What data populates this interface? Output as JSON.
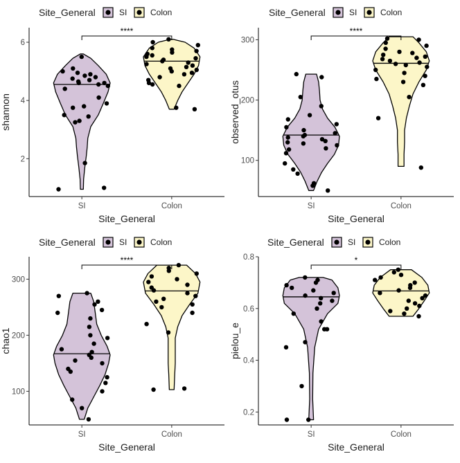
{
  "chart_data": [
    {
      "type": "violin",
      "legend_title": "Site_General",
      "legend_position": "top",
      "categories": [
        "SI",
        "Colon"
      ],
      "colors": {
        "SI": "#d4c3d9",
        "Colon": "#fcf6c8"
      },
      "xlabel": "Site_General",
      "ylabel": "shannon",
      "ylim": [
        0.7,
        6.5
      ],
      "yticks": [
        2,
        4,
        6
      ],
      "significance": "****",
      "median": {
        "SI": 4.55,
        "Colon": 5.35
      },
      "violin": {
        "SI": [
          [
            0.95,
            0.05
          ],
          [
            1.3,
            0.06
          ],
          [
            1.7,
            0.1
          ],
          [
            2.1,
            0.15
          ],
          [
            2.4,
            0.18
          ],
          [
            2.7,
            0.2
          ],
          [
            3.1,
            0.3
          ],
          [
            3.5,
            0.55
          ],
          [
            3.9,
            0.72
          ],
          [
            4.3,
            0.88
          ],
          [
            4.6,
            0.95
          ],
          [
            4.9,
            0.82
          ],
          [
            5.2,
            0.55
          ],
          [
            5.45,
            0.3
          ],
          [
            5.6,
            0.05
          ]
        ],
        "Colon": [
          [
            3.7,
            0.08
          ],
          [
            4.0,
            0.2
          ],
          [
            4.3,
            0.35
          ],
          [
            4.6,
            0.55
          ],
          [
            4.9,
            0.75
          ],
          [
            5.2,
            0.9
          ],
          [
            5.5,
            0.95
          ],
          [
            5.8,
            0.75
          ],
          [
            6.0,
            0.45
          ],
          [
            6.1,
            0.05
          ]
        ]
      },
      "points": {
        "SI": [
          1.0,
          0.95,
          1.85,
          3.25,
          3.3,
          3.45,
          3.5,
          3.75,
          3.8,
          3.9,
          4.1,
          4.4,
          4.5,
          4.55,
          4.6,
          4.6,
          4.65,
          4.7,
          4.75,
          4.8,
          4.85,
          4.9,
          4.95,
          5.0,
          5.1,
          5.5
        ],
        "Colon": [
          3.7,
          3.75,
          4.5,
          4.55,
          4.6,
          4.7,
          4.8,
          4.9,
          4.95,
          5.0,
          5.05,
          5.1,
          5.15,
          5.2,
          5.25,
          5.3,
          5.35,
          5.4,
          5.45,
          5.5,
          5.55,
          5.6,
          5.65,
          5.7,
          5.75,
          5.8,
          5.9,
          6.0,
          6.1
        ]
      }
    },
    {
      "type": "violin",
      "legend_title": "Site_General",
      "legend_position": "top",
      "categories": [
        "SI",
        "Colon"
      ],
      "colors": {
        "SI": "#d4c3d9",
        "Colon": "#fcf6c8"
      },
      "xlabel": "Site_General",
      "ylabel": "observed_otus",
      "ylim": [
        40,
        320
      ],
      "yticks": [
        100,
        200,
        300
      ],
      "significance": "****",
      "median": {
        "SI": 142,
        "Colon": 261
      },
      "violin": {
        "SI": [
          [
            50,
            0.08
          ],
          [
            65,
            0.2
          ],
          [
            80,
            0.35
          ],
          [
            95,
            0.55
          ],
          [
            110,
            0.78
          ],
          [
            125,
            0.92
          ],
          [
            140,
            0.95
          ],
          [
            155,
            0.8
          ],
          [
            170,
            0.55
          ],
          [
            185,
            0.38
          ],
          [
            200,
            0.3
          ],
          [
            215,
            0.28
          ],
          [
            230,
            0.25
          ],
          [
            243,
            0.18
          ]
        ],
        "Colon": [
          [
            90,
            0.1
          ],
          [
            110,
            0.1
          ],
          [
            130,
            0.12
          ],
          [
            150,
            0.12
          ],
          [
            170,
            0.18
          ],
          [
            190,
            0.28
          ],
          [
            210,
            0.4
          ],
          [
            230,
            0.6
          ],
          [
            250,
            0.85
          ],
          [
            265,
            0.95
          ],
          [
            280,
            0.85
          ],
          [
            295,
            0.6
          ],
          [
            305,
            0.4
          ]
        ]
      },
      "points": {
        "SI": [
          50,
          58,
          62,
          78,
          85,
          95,
          112,
          118,
          120,
          125,
          128,
          130,
          132,
          135,
          138,
          140,
          142,
          145,
          150,
          155,
          160,
          168,
          175,
          190,
          205,
          238,
          243
        ],
        "Colon": [
          88,
          170,
          205,
          225,
          230,
          235,
          240,
          245,
          250,
          255,
          258,
          260,
          262,
          265,
          268,
          270,
          272,
          275,
          278,
          280,
          285,
          290,
          295,
          300,
          302
        ]
      }
    },
    {
      "type": "violin",
      "legend_title": "Site_General",
      "legend_position": "top",
      "categories": [
        "SI",
        "Colon"
      ],
      "colors": {
        "SI": "#d4c3d9",
        "Colon": "#fcf6c8"
      },
      "xlabel": "Site_General",
      "ylabel": "chao1",
      "ylim": [
        40,
        340
      ],
      "yticks": [
        100,
        200,
        300
      ],
      "significance": "****",
      "median": {
        "SI": 167,
        "Colon": 279
      },
      "violin": {
        "SI": [
          [
            50,
            0.08
          ],
          [
            70,
            0.2
          ],
          [
            90,
            0.4
          ],
          [
            110,
            0.6
          ],
          [
            130,
            0.78
          ],
          [
            150,
            0.9
          ],
          [
            165,
            0.95
          ],
          [
            180,
            0.85
          ],
          [
            200,
            0.65
          ],
          [
            220,
            0.5
          ],
          [
            240,
            0.45
          ],
          [
            260,
            0.4
          ],
          [
            275,
            0.3
          ]
        ],
        "Colon": [
          [
            103,
            0.08
          ],
          [
            130,
            0.1
          ],
          [
            150,
            0.12
          ],
          [
            170,
            0.12
          ],
          [
            195,
            0.12
          ],
          [
            215,
            0.2
          ],
          [
            235,
            0.35
          ],
          [
            255,
            0.6
          ],
          [
            275,
            0.88
          ],
          [
            295,
            0.95
          ],
          [
            310,
            0.8
          ],
          [
            325,
            0.5
          ]
        ]
      },
      "points": {
        "SI": [
          50,
          70,
          85,
          100,
          115,
          125,
          135,
          140,
          150,
          155,
          160,
          165,
          170,
          175,
          185,
          195,
          200,
          215,
          230,
          240,
          245,
          255,
          260,
          270,
          275
        ],
        "Colon": [
          103,
          105,
          205,
          220,
          240,
          250,
          255,
          260,
          265,
          270,
          275,
          280,
          285,
          290,
          295,
          300,
          305,
          310,
          315,
          320,
          325
        ]
      }
    },
    {
      "type": "violin",
      "legend_title": "Site_General",
      "legend_position": "top",
      "categories": [
        "SI",
        "Colon"
      ],
      "colors": {
        "SI": "#d4c3d9",
        "Colon": "#fcf6c8"
      },
      "xlabel": "Site_General",
      "ylabel": "pielou_e",
      "ylim": [
        0.15,
        0.8
      ],
      "yticks": [
        0.2,
        0.4,
        0.6,
        0.8
      ],
      "significance": "*",
      "median": {
        "SI": 0.645,
        "Colon": 0.668
      },
      "violin": {
        "SI": [
          [
            0.17,
            0.08
          ],
          [
            0.25,
            0.05
          ],
          [
            0.35,
            0.06
          ],
          [
            0.45,
            0.12
          ],
          [
            0.52,
            0.25
          ],
          [
            0.58,
            0.55
          ],
          [
            0.62,
            0.9
          ],
          [
            0.65,
            0.95
          ],
          [
            0.68,
            0.9
          ],
          [
            0.71,
            0.7
          ],
          [
            0.72,
            0.4
          ]
        ],
        "Colon": [
          [
            0.57,
            0.4
          ],
          [
            0.6,
            0.6
          ],
          [
            0.63,
            0.78
          ],
          [
            0.66,
            0.95
          ],
          [
            0.69,
            0.9
          ],
          [
            0.72,
            0.7
          ],
          [
            0.75,
            0.35
          ]
        ]
      },
      "points": {
        "SI": [
          0.17,
          0.17,
          0.3,
          0.45,
          0.47,
          0.52,
          0.52,
          0.55,
          0.58,
          0.6,
          0.62,
          0.63,
          0.64,
          0.65,
          0.66,
          0.67,
          0.68,
          0.69,
          0.7,
          0.71,
          0.72
        ],
        "Colon": [
          0.57,
          0.58,
          0.59,
          0.6,
          0.61,
          0.62,
          0.63,
          0.64,
          0.65,
          0.66,
          0.67,
          0.68,
          0.69,
          0.7,
          0.71,
          0.72,
          0.73,
          0.74,
          0.75
        ]
      }
    }
  ]
}
